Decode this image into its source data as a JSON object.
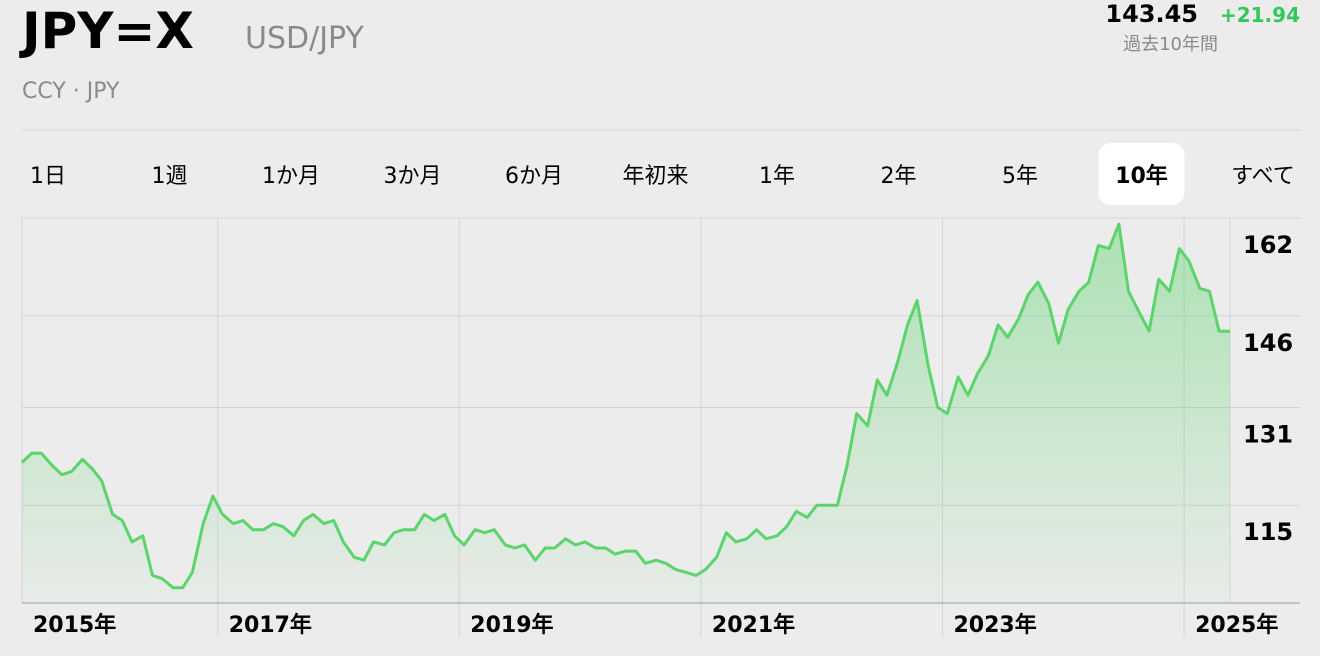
{
  "header": {
    "symbol": "JPY=X",
    "name": "USD/JPY",
    "exchange": "CCY · JPY",
    "price": "143.45",
    "change": "+21.94",
    "change_period": "過去10年間"
  },
  "ranges": {
    "items": [
      "1日",
      "1週",
      "1か月",
      "3か月",
      "6か月",
      "年初来",
      "1年",
      "2年",
      "5年",
      "10年",
      "すべて"
    ],
    "selected": 9
  },
  "chart_data": {
    "type": "area",
    "color": "#5cd46c",
    "x": [
      2015.38,
      2015.46,
      2015.54,
      2015.63,
      2015.71,
      2015.79,
      2015.88,
      2015.96,
      2016.04,
      2016.13,
      2016.21,
      2016.29,
      2016.38,
      2016.46,
      2016.54,
      2016.63,
      2016.71,
      2016.79,
      2016.88,
      2016.96,
      2017.04,
      2017.13,
      2017.21,
      2017.29,
      2017.38,
      2017.46,
      2017.54,
      2017.63,
      2017.71,
      2017.79,
      2017.88,
      2017.96,
      2018.04,
      2018.13,
      2018.21,
      2018.29,
      2018.38,
      2018.46,
      2018.54,
      2018.63,
      2018.71,
      2018.79,
      2018.88,
      2018.96,
      2019.04,
      2019.13,
      2019.21,
      2019.29,
      2019.38,
      2019.46,
      2019.54,
      2019.63,
      2019.71,
      2019.79,
      2019.88,
      2019.96,
      2020.04,
      2020.13,
      2020.21,
      2020.29,
      2020.38,
      2020.46,
      2020.54,
      2020.63,
      2020.71,
      2020.79,
      2020.88,
      2020.96,
      2021.04,
      2021.13,
      2021.21,
      2021.29,
      2021.38,
      2021.46,
      2021.54,
      2021.63,
      2021.71,
      2021.79,
      2021.88,
      2021.96,
      2022.04,
      2022.13,
      2022.21,
      2022.29,
      2022.38,
      2022.46,
      2022.54,
      2022.63,
      2022.71,
      2022.79,
      2022.88,
      2022.96,
      2023.04,
      2023.13,
      2023.21,
      2023.29,
      2023.38,
      2023.46,
      2023.54,
      2023.63,
      2023.71,
      2023.79,
      2023.88,
      2023.96,
      2024.04,
      2024.13,
      2024.21,
      2024.29,
      2024.38,
      2024.46,
      2024.54,
      2024.63,
      2024.71,
      2024.79,
      2024.88,
      2024.96,
      2025.04,
      2025.13,
      2025.21,
      2025.29,
      2025.38
    ],
    "values": [
      122,
      123.5,
      123.5,
      121.5,
      120,
      120.5,
      122.5,
      121,
      119,
      113.5,
      112.5,
      109,
      110,
      103.5,
      103,
      101.5,
      101.5,
      104,
      112,
      116.5,
      113.5,
      112,
      112.5,
      111,
      111,
      112,
      111.5,
      110,
      112.5,
      113.5,
      112,
      112.5,
      109,
      106.5,
      106,
      109,
      108.5,
      110.5,
      111,
      111,
      113.5,
      112.5,
      113.5,
      110,
      108.5,
      111,
      110.5,
      111,
      108.5,
      108,
      108.5,
      106,
      108,
      108,
      109.5,
      108.5,
      109,
      108,
      108,
      107,
      107.5,
      107.5,
      105.5,
      106,
      105.5,
      104.5,
      104,
      103.5,
      104.5,
      106.5,
      110.5,
      109,
      109.5,
      111,
      109.5,
      110,
      111.5,
      114,
      113,
      115,
      115,
      115,
      121.5,
      130,
      128,
      135.5,
      133,
      138.5,
      144.5,
      148.5,
      138,
      131,
      130,
      136,
      133,
      136.5,
      139.5,
      144.5,
      142.5,
      145.5,
      149.5,
      151.5,
      148,
      141.5,
      147,
      150,
      151.5,
      157.5,
      157,
      161,
      150,
      146.5,
      143.5,
      152,
      150,
      157,
      155,
      150.5,
      150,
      143.5,
      143.45
    ],
    "xlim": [
      2015.38,
      2025.38
    ],
    "xticks": [
      {
        "value": 2015.38,
        "label": "2015年"
      },
      {
        "value": 2017,
        "label": "2017年"
      },
      {
        "value": 2019,
        "label": "2019年"
      },
      {
        "value": 2021,
        "label": "2021年"
      },
      {
        "value": 2023,
        "label": "2023年"
      },
      {
        "value": 2025,
        "label": "2025年"
      }
    ],
    "ylim": [
      99,
      162
    ],
    "yticks": [
      115,
      131,
      146,
      162
    ],
    "grid": true
  }
}
